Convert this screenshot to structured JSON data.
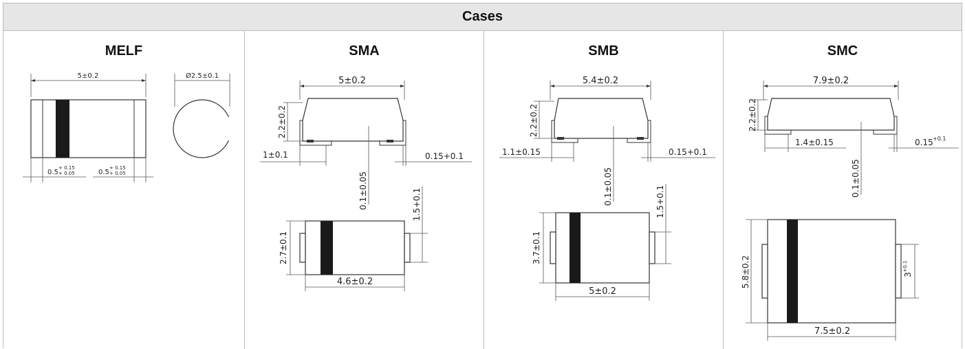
{
  "table": {
    "header": "Cases",
    "columns": [
      {
        "title": "MELF",
        "dims": {
          "length": "5±0.2",
          "diameter": "Ø2.5±0.1",
          "cap_left": "0.5",
          "cap_left_tol_top": "+ 0.15",
          "cap_left_tol_bot": "+ 0.05",
          "cap_right": "0.5",
          "cap_right_tol_top": "+ 0.15",
          "cap_right_tol_bot": "+ 0.05"
        }
      },
      {
        "title": "SMA",
        "dims": {
          "length": "5±0.2",
          "height": "2.2±0.2",
          "lead": "1±0.1",
          "lead_t": "0.15+0.1",
          "standoff": "0.1±0.05",
          "lead_w": "1.5+0.1",
          "width": "2.7±0.1",
          "body_len": "4.6±0.2"
        }
      },
      {
        "title": "SMB",
        "dims": {
          "length": "5.4±0.2",
          "height": "2.2±0.2",
          "lead": "1.1±0.15",
          "lead_t": "0.15+0.1",
          "standoff": "0.1±0.05",
          "lead_w": "1.5+0.1",
          "width": "3.7±0.1",
          "body_len": "5±0.2"
        }
      },
      {
        "title": "SMC",
        "dims": {
          "length": "7.9±0.2",
          "height": "2.2±0.2",
          "lead": "1.4±0.15",
          "lead_t": "0.15",
          "lead_t_sup": "+0.1",
          "standoff": "0.1±0.05",
          "lead_w": "3",
          "lead_w_sup": "+0.1",
          "width": "5.8±0.2",
          "body_len": "7.5±0.2"
        }
      }
    ]
  }
}
